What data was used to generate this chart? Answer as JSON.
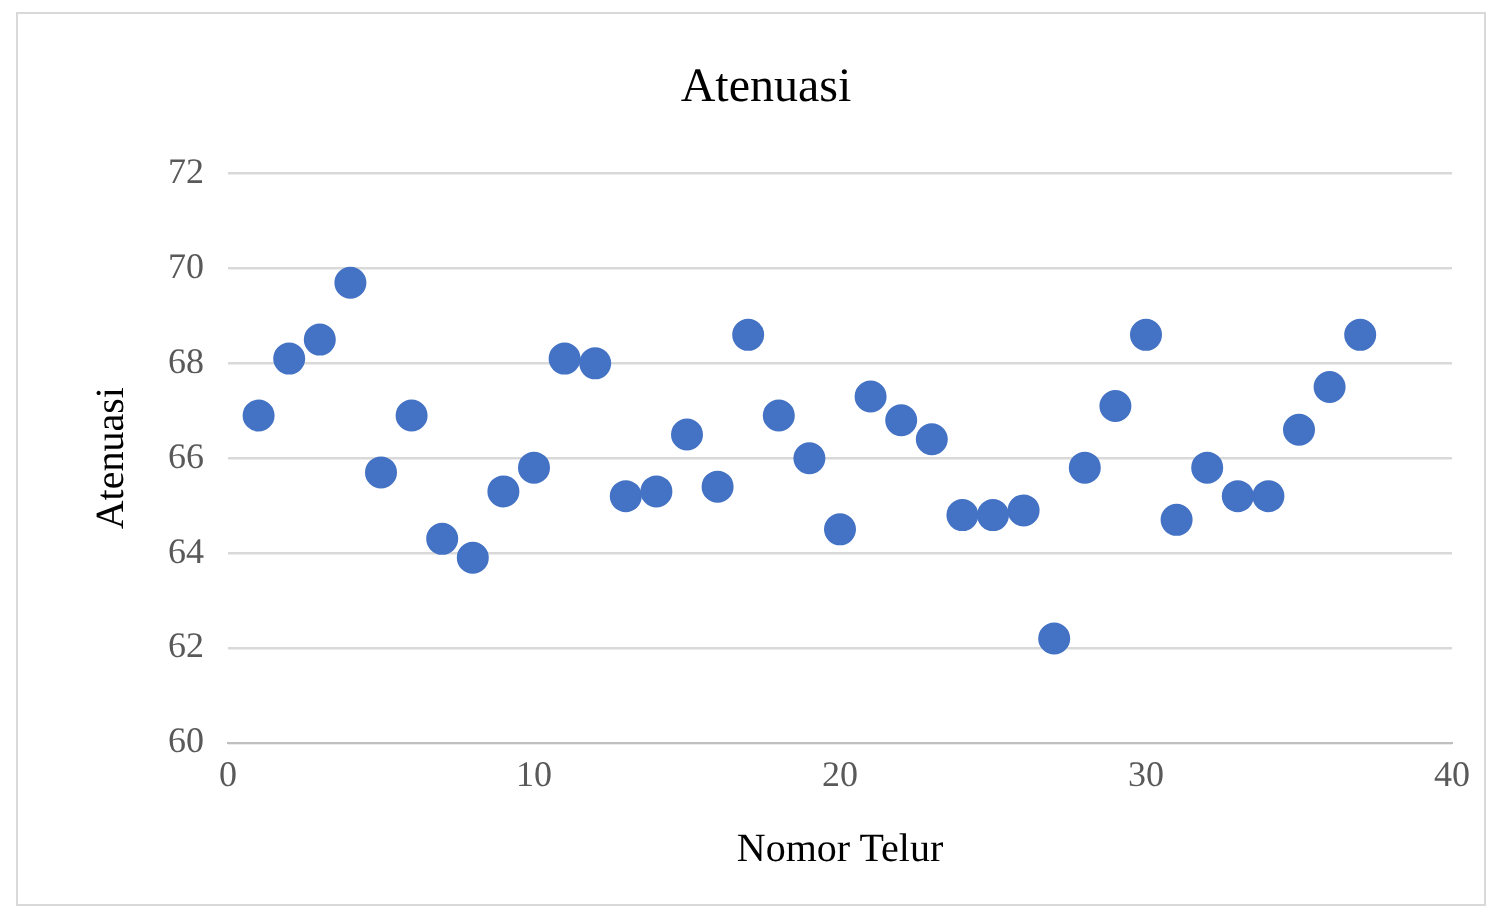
{
  "chart_data": {
    "type": "scatter",
    "title": "Atenuasi",
    "xlabel": "Nomor Telur",
    "ylabel": "Atenuasi",
    "x": [
      1,
      2,
      3,
      4,
      5,
      6,
      7,
      8,
      9,
      10,
      11,
      12,
      13,
      14,
      15,
      16,
      17,
      18,
      19,
      20,
      21,
      22,
      23,
      24,
      25,
      26,
      27,
      28,
      29,
      30,
      31,
      32,
      33,
      34,
      35,
      36,
      37
    ],
    "values": [
      66.9,
      68.1,
      68.5,
      69.7,
      65.7,
      66.9,
      64.3,
      63.9,
      65.3,
      65.8,
      68.1,
      68.0,
      65.2,
      65.3,
      66.5,
      65.4,
      68.6,
      66.9,
      66.0,
      64.5,
      67.3,
      66.8,
      66.4,
      64.8,
      64.8,
      64.9,
      62.2,
      65.8,
      67.1,
      68.6,
      64.7,
      65.8,
      65.2,
      65.2,
      66.6,
      67.5,
      68.6
    ],
    "color": "#4472c4",
    "marker": "circle",
    "xlim": [
      0,
      40
    ],
    "xticks": [
      0,
      10,
      20,
      30,
      40
    ],
    "ylim": [
      60,
      72
    ],
    "yticks": [
      60,
      62,
      64,
      66,
      68,
      70,
      72
    ],
    "grid": "y",
    "legend": false
  }
}
